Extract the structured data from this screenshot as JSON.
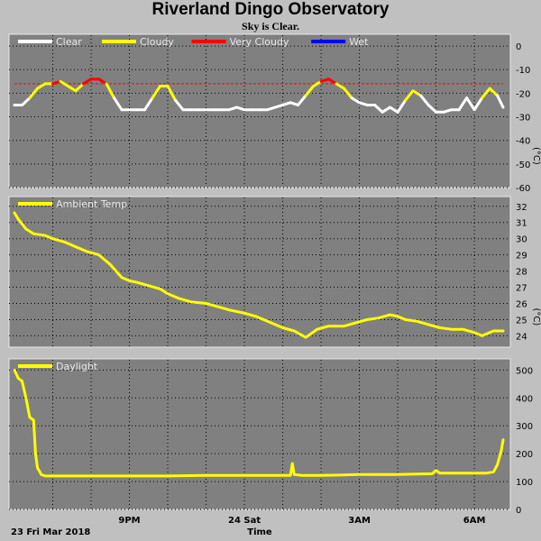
{
  "header": {
    "title": "Riverland Dingo Observatory",
    "subtitle": "Sky is Clear."
  },
  "footer": {
    "date": "23 Fri Mar 2018",
    "xlabel": "Time"
  },
  "colors": {
    "panel_bg": "#808080",
    "clear": "#ffffff",
    "cloudy": "#ffff00",
    "very_cloudy": "#ff0000",
    "wet": "#0000ff",
    "line": "#ffff00",
    "threshold": "#ff0000"
  },
  "chart_data": [
    {
      "type": "line",
      "name": "sky",
      "ylabel": "(°C)",
      "ylim": [
        -60,
        5
      ],
      "yticks": [
        0,
        -10,
        -20,
        -30,
        -40,
        -50,
        -60
      ],
      "xlim": [
        18.0,
        30.75
      ],
      "legend": [
        "Clear",
        "Cloudy",
        "Very Cloudy",
        "Wet"
      ],
      "legend_position": "top-left",
      "threshold": -16,
      "series": [
        {
          "name": "Clear",
          "x": [
            18.0,
            18.2,
            18.4,
            18.6,
            18.8,
            19.0,
            19.2,
            19.4,
            19.6,
            19.8,
            20.0,
            20.2,
            20.4,
            20.6,
            20.8,
            21.0,
            21.2,
            21.4,
            21.6,
            21.8,
            22.0,
            22.2,
            22.4,
            22.6,
            22.8,
            23.0,
            23.2,
            23.4,
            23.6,
            23.8,
            24.0,
            24.2,
            24.4,
            24.6,
            24.8,
            25.0,
            25.2,
            25.4,
            25.6,
            25.8,
            26.0,
            26.2,
            26.4,
            26.6,
            26.8,
            27.0,
            27.2,
            27.4,
            27.6,
            27.8,
            28.0,
            28.2,
            28.4,
            28.6,
            28.8,
            29.0,
            29.2,
            29.4,
            29.6,
            29.8,
            30.0,
            30.2,
            30.4,
            30.6,
            30.75
          ],
          "y": [
            -25,
            -25,
            -22,
            -18,
            -16,
            -16,
            -15,
            -17,
            -19,
            -16,
            -14,
            -14,
            -16,
            -22,
            -27,
            -27,
            -27,
            -27,
            -22,
            -17,
            -17,
            -23,
            -27,
            -27,
            -27,
            -27,
            -27,
            -27,
            -27,
            -26,
            -27,
            -27,
            -27,
            -27,
            -26,
            -25,
            -24,
            -25,
            -21,
            -17,
            -15,
            -14,
            -16,
            -18,
            -22,
            -24,
            -25,
            -25,
            -28,
            -26,
            -28,
            -23,
            -19,
            -21,
            -25,
            -28,
            -28,
            -27,
            -27,
            -22,
            -27,
            -22,
            -18,
            -21,
            -26
          ]
        }
      ]
    },
    {
      "type": "line",
      "name": "ambient",
      "ylabel": "(°C)",
      "ylim": [
        23.3,
        32.6
      ],
      "yticks": [
        24,
        25,
        26,
        27,
        28,
        29,
        30,
        31,
        32
      ],
      "xlim": [
        18.0,
        30.75
      ],
      "legend": [
        "Ambient Temp"
      ],
      "legend_position": "top-left",
      "series": [
        {
          "name": "Ambient Temp",
          "x": [
            18.0,
            18.1,
            18.3,
            18.5,
            18.8,
            19.0,
            19.3,
            19.6,
            19.9,
            20.2,
            20.5,
            20.8,
            21.0,
            21.2,
            21.5,
            21.8,
            22.0,
            22.3,
            22.6,
            23.0,
            23.3,
            23.6,
            24.0,
            24.3,
            24.6,
            25.0,
            25.3,
            25.6,
            25.9,
            26.2,
            26.4,
            26.6,
            26.9,
            27.2,
            27.5,
            27.8,
            28.0,
            28.2,
            28.5,
            28.8,
            29.1,
            29.4,
            29.7,
            30.0,
            30.2,
            30.5,
            30.75
          ],
          "y": [
            31.6,
            31.2,
            30.6,
            30.3,
            30.2,
            30.0,
            29.8,
            29.5,
            29.2,
            29.0,
            28.4,
            27.6,
            27.4,
            27.3,
            27.1,
            26.9,
            26.6,
            26.3,
            26.1,
            26.0,
            25.8,
            25.6,
            25.4,
            25.2,
            24.9,
            24.5,
            24.3,
            23.9,
            24.4,
            24.6,
            24.6,
            24.6,
            24.8,
            25.0,
            25.1,
            25.3,
            25.2,
            25.0,
            24.9,
            24.7,
            24.5,
            24.4,
            24.4,
            24.2,
            24.0,
            24.3,
            24.3
          ]
        }
      ]
    },
    {
      "type": "line",
      "name": "daylight",
      "ylim": [
        0,
        540
      ],
      "yticks": [
        0,
        100,
        200,
        300,
        400,
        500
      ],
      "xlim": [
        18.0,
        30.75
      ],
      "legend": [
        "Daylight"
      ],
      "legend_position": "top-left",
      "xticks": [
        {
          "x": 21.0,
          "label": "9PM"
        },
        {
          "x": 24.0,
          "label": "24 Sat"
        },
        {
          "x": 27.0,
          "label": "3AM"
        },
        {
          "x": 30.0,
          "label": "6AM"
        }
      ],
      "series": [
        {
          "name": "Daylight",
          "x": [
            18.0,
            18.1,
            18.2,
            18.3,
            18.4,
            18.5,
            18.55,
            18.6,
            18.7,
            18.8,
            19.0,
            19.5,
            20.0,
            21.0,
            22.0,
            23.0,
            24.0,
            25.0,
            25.2,
            25.25,
            25.3,
            25.5,
            26.0,
            27.0,
            28.0,
            28.9,
            29.0,
            29.1,
            29.5,
            30.0,
            30.3,
            30.5,
            30.6,
            30.7,
            30.75
          ],
          "y": [
            500,
            470,
            460,
            400,
            330,
            320,
            200,
            150,
            125,
            120,
            120,
            120,
            120,
            120,
            120,
            122,
            122,
            122,
            122,
            165,
            125,
            122,
            122,
            125,
            125,
            128,
            140,
            130,
            130,
            130,
            130,
            135,
            160,
            210,
            250
          ]
        }
      ]
    }
  ]
}
